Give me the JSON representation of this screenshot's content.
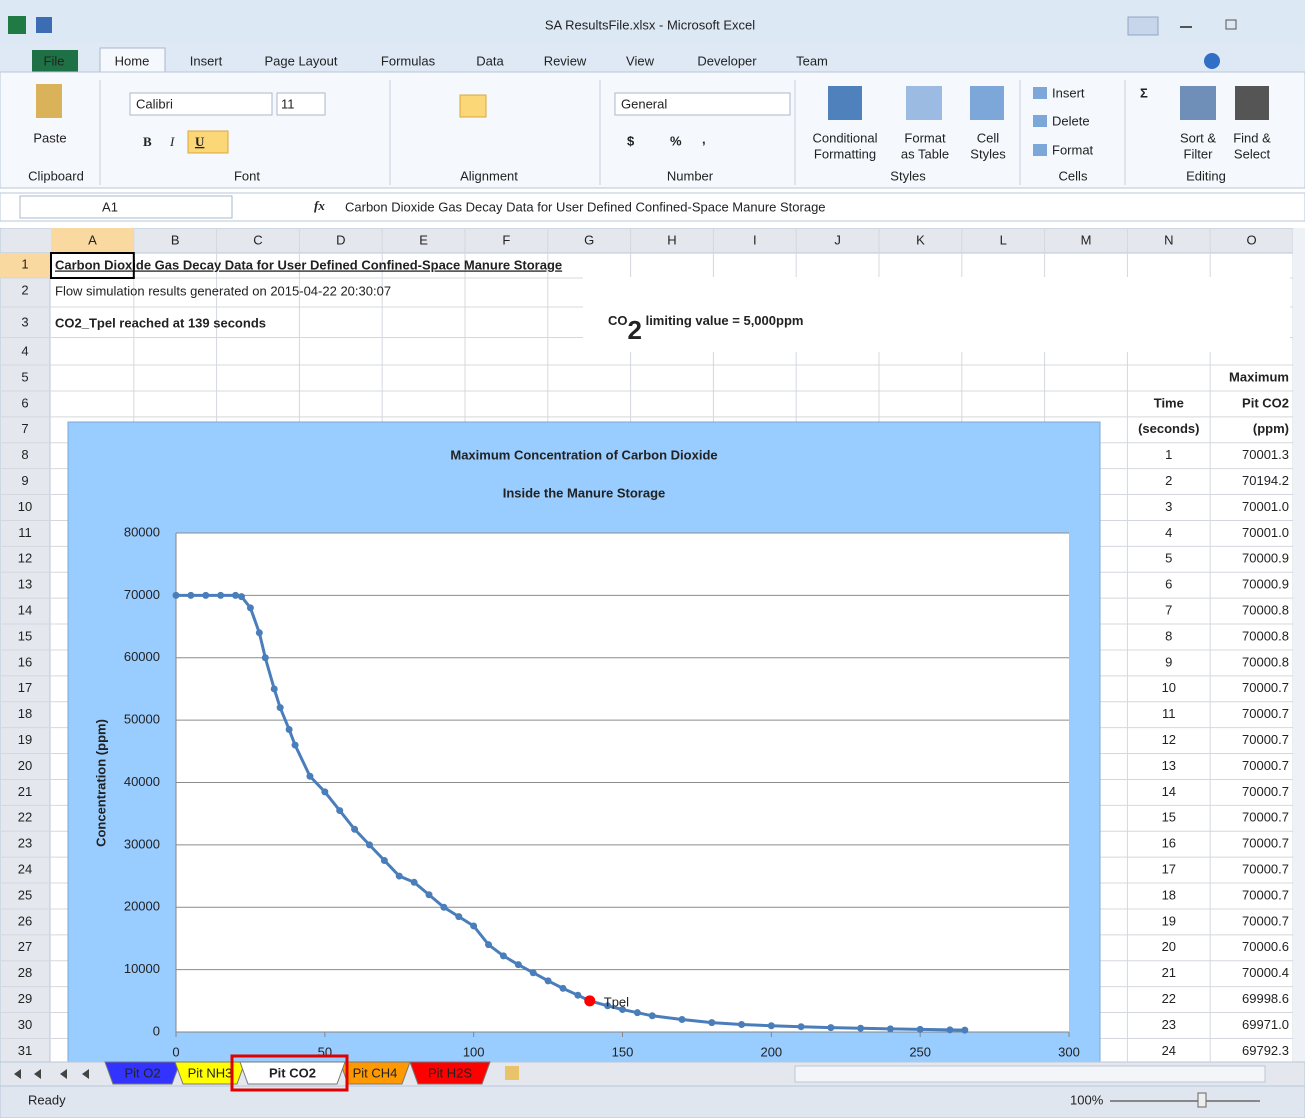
{
  "window_title": "SA ResultsFile.xlsx - Microsoft Excel",
  "ribbon": {
    "tabs": [
      "File",
      "Home",
      "Insert",
      "Page Layout",
      "Formulas",
      "Data",
      "Review",
      "View",
      "Developer",
      "Team"
    ],
    "active_tab": 1,
    "clipboard": {
      "paste": "Paste",
      "label": "Clipboard"
    },
    "font": {
      "name": "Calibri",
      "size": "11",
      "bold": "B",
      "italic": "I",
      "underline": "U",
      "label": "Font"
    },
    "alignment": {
      "label": "Alignment"
    },
    "number": {
      "format": "General",
      "currency": "$",
      "percent": "%",
      "comma": ",",
      "label": "Number"
    },
    "styles": {
      "buttons": [
        [
          "Conditional",
          "Formatting"
        ],
        [
          "Format",
          "as Table"
        ],
        [
          "Cell",
          "Styles"
        ]
      ],
      "label": "Styles"
    },
    "cells": {
      "buttons": [
        "Insert",
        "Delete",
        "Format"
      ],
      "label": "Cells"
    },
    "editing": {
      "sigma": "Σ",
      "buttons": [
        [
          "Sort &",
          "Filter"
        ],
        [
          "Find &",
          "Select"
        ]
      ],
      "label": "Editing"
    }
  },
  "formula_bar": {
    "name_box": "A1",
    "fx": "fx",
    "content": "Carbon Dioxide Gas Decay Data for User Defined Confined-Space Manure Storage"
  },
  "sheet": {
    "columns": [
      "A",
      "B",
      "C",
      "D",
      "E",
      "F",
      "G",
      "H",
      "I",
      "J",
      "K",
      "L",
      "M",
      "N",
      "O"
    ],
    "rows": [
      "1",
      "2",
      "3",
      "4",
      "5",
      "6",
      "7",
      "8",
      "9",
      "10",
      "11",
      "12",
      "13",
      "14",
      "15",
      "16",
      "17",
      "18",
      "19",
      "20",
      "21",
      "22",
      "23",
      "24",
      "25",
      "26",
      "27",
      "28",
      "29",
      "30",
      "31"
    ],
    "cells": {
      "A1": "Carbon Dioxide Gas Decay Data for User Defined Confined-Space Manure Storage",
      "A2": "Flow simulation results generated on 2015-04-22 20:30:07",
      "A3": "CO2_Tpel reached at 139 seconds"
    },
    "table": {
      "headers": {
        "N6": "Time",
        "N7": "(seconds)",
        "O5": "Maximum",
        "O6": "Pit CO2",
        "O7": "(ppm)"
      },
      "rows": [
        [
          "1",
          "70001.3"
        ],
        [
          "2",
          "70194.2"
        ],
        [
          "3",
          "70001.0"
        ],
        [
          "4",
          "70001.0"
        ],
        [
          "5",
          "70000.9"
        ],
        [
          "6",
          "70000.9"
        ],
        [
          "7",
          "70000.8"
        ],
        [
          "8",
          "70000.8"
        ],
        [
          "9",
          "70000.8"
        ],
        [
          "10",
          "70000.7"
        ],
        [
          "11",
          "70000.7"
        ],
        [
          "12",
          "70000.7"
        ],
        [
          "13",
          "70000.7"
        ],
        [
          "14",
          "70000.7"
        ],
        [
          "15",
          "70000.7"
        ],
        [
          "16",
          "70000.7"
        ],
        [
          "17",
          "70000.7"
        ],
        [
          "18",
          "70000.7"
        ],
        [
          "19",
          "70000.7"
        ],
        [
          "20",
          "70000.6"
        ],
        [
          "21",
          "70000.4"
        ],
        [
          "22",
          "69998.6"
        ],
        [
          "23",
          "69971.0"
        ],
        [
          "24",
          "69792.3"
        ]
      ]
    }
  },
  "annotation": {
    "text": "CO",
    "subscript": "2",
    "rest": " limiting value = 5,000ppm"
  },
  "chart": {
    "type": "line",
    "title": [
      "Maximum Concentration of Carbon Dioxide",
      "Inside the Manure Storage"
    ],
    "y_label": "Concentration (ppm)",
    "x": [
      0,
      5,
      10,
      15,
      20,
      22,
      25,
      28,
      30,
      33,
      35,
      38,
      40,
      45,
      50,
      55,
      60,
      65,
      70,
      75,
      80,
      85,
      90,
      95,
      100,
      105,
      110,
      115,
      120,
      125,
      130,
      135,
      139,
      145,
      150,
      155,
      160,
      170,
      180,
      190,
      200,
      210,
      220,
      230,
      240,
      250,
      260,
      265
    ],
    "values": [
      70000,
      70000,
      70000,
      70000,
      70000,
      69800,
      68000,
      64000,
      60000,
      55000,
      52000,
      48500,
      46000,
      41000,
      38500,
      35500,
      32500,
      30000,
      27500,
      25000,
      24000,
      22000,
      20000,
      18500,
      17000,
      14000,
      12200,
      10800,
      9500,
      8200,
      7000,
      5900,
      5000,
      4200,
      3600,
      3100,
      2600,
      2000,
      1500,
      1200,
      1000,
      850,
      700,
      600,
      500,
      420,
      350,
      300
    ],
    "color": "#4a7ebb",
    "marker": {
      "label": "Tpel",
      "x": 139,
      "y": 5000,
      "color": "#ff0000"
    },
    "xlim": [
      0,
      300
    ],
    "xticks": [
      0,
      50,
      100,
      150,
      200,
      250,
      300
    ],
    "ylim": [
      0,
      80000
    ],
    "yticks": [
      0,
      10000,
      20000,
      30000,
      40000,
      50000,
      60000,
      70000,
      80000
    ],
    "grid": true
  },
  "sheet_tabs": {
    "tabs": [
      {
        "name": "Pit O2",
        "color": "#3333ff"
      },
      {
        "name": "Pit NH3",
        "color": "#ffff00"
      },
      {
        "name": "Pit CO2",
        "color": "#ffffff"
      },
      {
        "name": "Pit CH4",
        "color": "#ff9900"
      },
      {
        "name": "Pit H2S",
        "color": "#ff0000"
      }
    ],
    "active": 2
  },
  "status_bar": {
    "status": "Ready",
    "zoom": "100%"
  }
}
